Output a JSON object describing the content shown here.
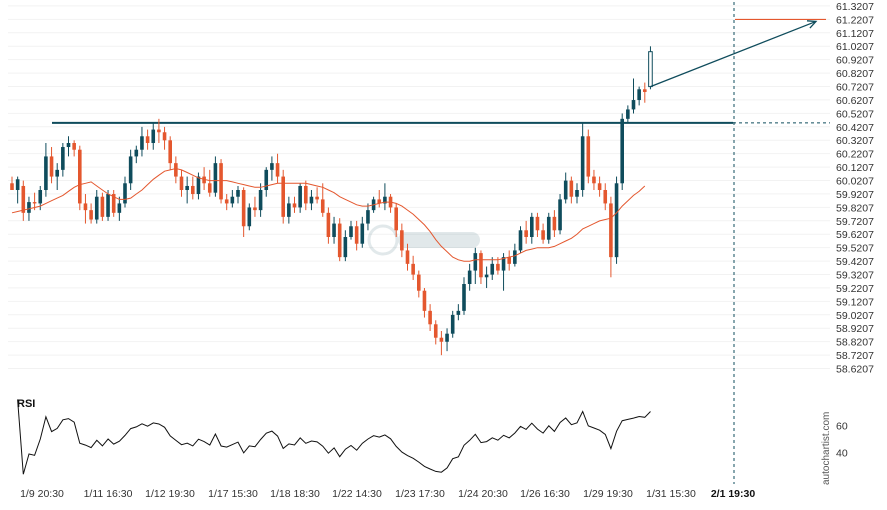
{
  "chart_data": {
    "type": "candlestick",
    "y_ticks": [
      "61.3207",
      "61.2207",
      "61.1207",
      "61.0207",
      "60.9207",
      "60.8207",
      "60.7207",
      "60.6207",
      "60.5207",
      "60.4207",
      "60.3207",
      "60.2207",
      "60.1207",
      "60.0207",
      "59.9207",
      "59.8207",
      "59.7207",
      "59.6207",
      "59.5207",
      "59.4207",
      "59.3207",
      "59.2207",
      "59.1207",
      "59.0207",
      "58.9207",
      "58.8207",
      "58.7207",
      "58.6207"
    ],
    "ylim": [
      58.55,
      61.35
    ],
    "x_ticks": [
      "1/9 20:30",
      "1/11 16:30",
      "1/12 19:30",
      "1/17 15:30",
      "1/18 18:30",
      "1/22 14:30",
      "1/23 17:30",
      "1/24 20:30",
      "1/26 16:30",
      "1/29 19:30",
      "1/31 15:30",
      "2/1 19:30"
    ],
    "highlighted_x_tick": "2/1 19:30",
    "colors": {
      "up": "#0f4c5c",
      "down": "#e4572e",
      "ma": "#e4572e",
      "resistance": "#0f4c5c",
      "target": "#e4572e",
      "rsi": "#111111",
      "projection": "#0f4c5c"
    },
    "resistance_level": 60.45,
    "target_level": 61.22,
    "rsi_label": "RSI",
    "rsi_ticks": [
      "60",
      "40"
    ],
    "rsi_ylim": [
      20,
      80
    ],
    "watermark": "autochartist.com",
    "candles": [
      {
        "o": 60.0,
        "h": 60.05,
        "l": 59.95,
        "c": 59.95
      },
      {
        "o": 59.95,
        "h": 60.05,
        "l": 59.85,
        "c": 60.03
      },
      {
        "o": 59.98,
        "h": 60.02,
        "l": 59.72,
        "c": 59.78
      },
      {
        "o": 59.78,
        "h": 59.9,
        "l": 59.72,
        "c": 59.86
      },
      {
        "o": 59.86,
        "h": 59.93,
        "l": 59.8,
        "c": 59.85
      },
      {
        "o": 59.85,
        "h": 59.98,
        "l": 59.8,
        "c": 59.95
      },
      {
        "o": 59.95,
        "h": 60.3,
        "l": 59.9,
        "c": 60.2
      },
      {
        "o": 60.2,
        "h": 60.27,
        "l": 60.0,
        "c": 60.05
      },
      {
        "o": 60.05,
        "h": 60.15,
        "l": 59.95,
        "c": 60.1
      },
      {
        "o": 60.1,
        "h": 60.3,
        "l": 60.05,
        "c": 60.27
      },
      {
        "o": 60.27,
        "h": 60.35,
        "l": 60.2,
        "c": 60.3
      },
      {
        "o": 60.3,
        "h": 60.32,
        "l": 60.2,
        "c": 60.25
      },
      {
        "o": 60.25,
        "h": 60.28,
        "l": 59.8,
        "c": 59.85
      },
      {
        "o": 59.85,
        "h": 59.92,
        "l": 59.7,
        "c": 59.8
      },
      {
        "o": 59.8,
        "h": 59.85,
        "l": 59.7,
        "c": 59.73
      },
      {
        "o": 59.73,
        "h": 59.95,
        "l": 59.7,
        "c": 59.9
      },
      {
        "o": 59.9,
        "h": 59.93,
        "l": 59.72,
        "c": 59.75
      },
      {
        "o": 59.75,
        "h": 59.95,
        "l": 59.72,
        "c": 59.92
      },
      {
        "o": 59.92,
        "h": 59.95,
        "l": 59.75,
        "c": 59.78
      },
      {
        "o": 59.78,
        "h": 59.9,
        "l": 59.72,
        "c": 59.85
      },
      {
        "o": 59.85,
        "h": 60.05,
        "l": 59.82,
        "c": 60.0
      },
      {
        "o": 60.0,
        "h": 60.25,
        "l": 59.95,
        "c": 60.2
      },
      {
        "o": 60.2,
        "h": 60.28,
        "l": 60.15,
        "c": 60.25
      },
      {
        "o": 60.25,
        "h": 60.42,
        "l": 60.2,
        "c": 60.35
      },
      {
        "o": 60.35,
        "h": 60.4,
        "l": 60.25,
        "c": 60.3
      },
      {
        "o": 60.3,
        "h": 60.45,
        "l": 60.25,
        "c": 60.4
      },
      {
        "o": 60.4,
        "h": 60.48,
        "l": 60.3,
        "c": 60.38
      },
      {
        "o": 60.38,
        "h": 60.42,
        "l": 60.25,
        "c": 60.32
      },
      {
        "o": 60.32,
        "h": 60.35,
        "l": 60.1,
        "c": 60.15
      },
      {
        "o": 60.15,
        "h": 60.2,
        "l": 60.0,
        "c": 60.05
      },
      {
        "o": 60.05,
        "h": 60.1,
        "l": 59.9,
        "c": 59.95
      },
      {
        "o": 59.95,
        "h": 60.05,
        "l": 59.85,
        "c": 59.98
      },
      {
        "o": 59.98,
        "h": 60.05,
        "l": 59.88,
        "c": 59.92
      },
      {
        "o": 59.92,
        "h": 60.08,
        "l": 59.88,
        "c": 60.05
      },
      {
        "o": 60.05,
        "h": 60.12,
        "l": 59.95,
        "c": 60.0
      },
      {
        "o": 60.0,
        "h": 60.1,
        "l": 59.9,
        "c": 59.93
      },
      {
        "o": 59.93,
        "h": 60.2,
        "l": 59.9,
        "c": 60.15
      },
      {
        "o": 60.15,
        "h": 60.18,
        "l": 59.85,
        "c": 59.88
      },
      {
        "o": 59.88,
        "h": 59.92,
        "l": 59.8,
        "c": 59.85
      },
      {
        "o": 59.85,
        "h": 59.95,
        "l": 59.82,
        "c": 59.9
      },
      {
        "o": 59.9,
        "h": 59.98,
        "l": 59.85,
        "c": 59.95
      },
      {
        "o": 59.95,
        "h": 59.97,
        "l": 59.6,
        "c": 59.68
      },
      {
        "o": 59.68,
        "h": 59.85,
        "l": 59.65,
        "c": 59.82
      },
      {
        "o": 59.82,
        "h": 59.9,
        "l": 59.75,
        "c": 59.8
      },
      {
        "o": 59.8,
        "h": 60.0,
        "l": 59.75,
        "c": 59.95
      },
      {
        "o": 59.95,
        "h": 60.12,
        "l": 59.9,
        "c": 60.1
      },
      {
        "o": 60.1,
        "h": 60.2,
        "l": 60.02,
        "c": 60.15
      },
      {
        "o": 60.15,
        "h": 60.22,
        "l": 60.0,
        "c": 60.05
      },
      {
        "o": 60.05,
        "h": 60.1,
        "l": 59.7,
        "c": 59.75
      },
      {
        "o": 59.75,
        "h": 59.9,
        "l": 59.7,
        "c": 59.85
      },
      {
        "o": 59.85,
        "h": 59.9,
        "l": 59.78,
        "c": 59.82
      },
      {
        "o": 59.82,
        "h": 60.0,
        "l": 59.78,
        "c": 59.98
      },
      {
        "o": 59.98,
        "h": 60.02,
        "l": 59.8,
        "c": 59.85
      },
      {
        "o": 59.85,
        "h": 59.95,
        "l": 59.8,
        "c": 59.9
      },
      {
        "o": 59.9,
        "h": 59.97,
        "l": 59.85,
        "c": 59.88
      },
      {
        "o": 59.88,
        "h": 60.0,
        "l": 59.75,
        "c": 59.78
      },
      {
        "o": 59.78,
        "h": 59.82,
        "l": 59.55,
        "c": 59.6
      },
      {
        "o": 59.6,
        "h": 59.75,
        "l": 59.55,
        "c": 59.7
      },
      {
        "o": 59.7,
        "h": 59.74,
        "l": 59.42,
        "c": 59.45
      },
      {
        "o": 59.45,
        "h": 59.65,
        "l": 59.42,
        "c": 59.6
      },
      {
        "o": 59.6,
        "h": 59.72,
        "l": 59.58,
        "c": 59.68
      },
      {
        "o": 59.68,
        "h": 59.72,
        "l": 59.5,
        "c": 59.55
      },
      {
        "o": 59.55,
        "h": 59.75,
        "l": 59.52,
        "c": 59.7
      },
      {
        "o": 59.7,
        "h": 59.85,
        "l": 59.65,
        "c": 59.8
      },
      {
        "o": 59.8,
        "h": 59.9,
        "l": 59.78,
        "c": 59.88
      },
      {
        "o": 59.88,
        "h": 59.95,
        "l": 59.82,
        "c": 59.85
      },
      {
        "o": 59.85,
        "h": 60.0,
        "l": 59.8,
        "c": 59.9
      },
      {
        "o": 59.9,
        "h": 59.92,
        "l": 59.78,
        "c": 59.82
      },
      {
        "o": 59.82,
        "h": 59.85,
        "l": 59.6,
        "c": 59.65
      },
      {
        "o": 59.65,
        "h": 59.7,
        "l": 59.45,
        "c": 59.5
      },
      {
        "o": 59.5,
        "h": 59.55,
        "l": 59.35,
        "c": 59.4
      },
      {
        "o": 59.4,
        "h": 59.46,
        "l": 59.28,
        "c": 59.32
      },
      {
        "o": 59.32,
        "h": 59.35,
        "l": 59.15,
        "c": 59.2
      },
      {
        "o": 59.2,
        "h": 59.22,
        "l": 59.0,
        "c": 59.05
      },
      {
        "o": 59.05,
        "h": 59.1,
        "l": 58.9,
        "c": 58.95
      },
      {
        "o": 58.95,
        "h": 58.98,
        "l": 58.8,
        "c": 58.85
      },
      {
        "o": 58.85,
        "h": 58.9,
        "l": 58.72,
        "c": 58.82
      },
      {
        "o": 58.82,
        "h": 58.92,
        "l": 58.75,
        "c": 58.88
      },
      {
        "o": 58.88,
        "h": 59.05,
        "l": 58.85,
        "c": 59.02
      },
      {
        "o": 59.02,
        "h": 59.1,
        "l": 58.98,
        "c": 59.05
      },
      {
        "o": 59.05,
        "h": 59.3,
        "l": 59.02,
        "c": 59.25
      },
      {
        "o": 59.25,
        "h": 59.4,
        "l": 59.2,
        "c": 59.35
      },
      {
        "o": 59.35,
        "h": 59.52,
        "l": 59.25,
        "c": 59.48
      },
      {
        "o": 59.48,
        "h": 59.5,
        "l": 59.25,
        "c": 59.3
      },
      {
        "o": 59.3,
        "h": 59.38,
        "l": 59.22,
        "c": 59.32
      },
      {
        "o": 59.32,
        "h": 59.45,
        "l": 59.28,
        "c": 59.4
      },
      {
        "o": 59.4,
        "h": 59.45,
        "l": 59.32,
        "c": 59.35
      },
      {
        "o": 59.35,
        "h": 59.48,
        "l": 59.2,
        "c": 59.45
      },
      {
        "o": 59.45,
        "h": 59.5,
        "l": 59.35,
        "c": 59.4
      },
      {
        "o": 59.4,
        "h": 59.55,
        "l": 59.38,
        "c": 59.5
      },
      {
        "o": 59.5,
        "h": 59.68,
        "l": 59.48,
        "c": 59.65
      },
      {
        "o": 59.65,
        "h": 59.72,
        "l": 59.55,
        "c": 59.6
      },
      {
        "o": 59.6,
        "h": 59.78,
        "l": 59.55,
        "c": 59.75
      },
      {
        "o": 59.75,
        "h": 59.78,
        "l": 59.6,
        "c": 59.65
      },
      {
        "o": 59.65,
        "h": 59.7,
        "l": 59.55,
        "c": 59.58
      },
      {
        "o": 59.58,
        "h": 59.78,
        "l": 59.55,
        "c": 59.75
      },
      {
        "o": 59.75,
        "h": 59.8,
        "l": 59.6,
        "c": 59.65
      },
      {
        "o": 59.65,
        "h": 59.92,
        "l": 59.62,
        "c": 59.88
      },
      {
        "o": 59.88,
        "h": 60.08,
        "l": 59.85,
        "c": 60.02
      },
      {
        "o": 60.02,
        "h": 60.05,
        "l": 59.85,
        "c": 59.9
      },
      {
        "o": 59.9,
        "h": 60.0,
        "l": 59.85,
        "c": 59.95
      },
      {
        "o": 59.95,
        "h": 60.45,
        "l": 59.9,
        "c": 60.35
      },
      {
        "o": 60.35,
        "h": 60.4,
        "l": 60.0,
        "c": 60.05
      },
      {
        "o": 60.05,
        "h": 60.1,
        "l": 59.95,
        "c": 60.0
      },
      {
        "o": 60.0,
        "h": 60.05,
        "l": 59.9,
        "c": 59.95
      },
      {
        "o": 59.95,
        "h": 60.0,
        "l": 59.8,
        "c": 59.85
      },
      {
        "o": 59.85,
        "h": 59.9,
        "l": 59.3,
        "c": 59.45
      },
      {
        "o": 59.45,
        "h": 60.05,
        "l": 59.4,
        "c": 60.0
      },
      {
        "o": 60.0,
        "h": 60.52,
        "l": 59.95,
        "c": 60.48
      },
      {
        "o": 60.48,
        "h": 60.58,
        "l": 60.45,
        "c": 60.55
      },
      {
        "o": 60.55,
        "h": 60.78,
        "l": 60.52,
        "c": 60.62
      },
      {
        "o": 60.62,
        "h": 60.72,
        "l": 60.58,
        "c": 60.7
      },
      {
        "o": 60.7,
        "h": 60.75,
        "l": 60.6,
        "c": 60.68
      },
      {
        "o": 60.72,
        "h": 61.02,
        "l": 60.7,
        "c": 60.98
      }
    ],
    "ma": [
      59.78,
      59.79,
      59.8,
      59.81,
      59.82,
      59.83,
      59.85,
      59.87,
      59.89,
      59.91,
      59.94,
      59.97,
      59.99,
      60.0,
      60.01,
      59.98,
      59.95,
      59.92,
      59.9,
      59.88,
      59.88,
      59.89,
      59.92,
      59.95,
      59.99,
      60.03,
      60.06,
      60.09,
      60.1,
      60.11,
      60.1,
      60.08,
      60.06,
      60.04,
      60.03,
      60.02,
      60.02,
      60.02,
      60.02,
      60.01,
      60.0,
      59.99,
      59.98,
      59.97,
      59.97,
      59.98,
      59.99,
      60.0,
      60.0,
      60.0,
      60.0,
      60.0,
      60.0,
      59.99,
      59.98,
      59.97,
      59.95,
      59.93,
      59.9,
      59.88,
      59.86,
      59.84,
      59.83,
      59.83,
      59.84,
      59.85,
      59.86,
      59.86,
      59.85,
      59.83,
      59.8,
      59.77,
      59.73,
      59.69,
      59.64,
      59.58,
      59.53,
      59.49,
      59.45,
      59.43,
      59.42,
      59.42,
      59.43,
      59.43,
      59.43,
      59.43,
      59.43,
      59.44,
      59.45,
      59.46,
      59.48,
      59.5,
      59.51,
      59.52,
      59.52,
      59.52,
      59.53,
      59.55,
      59.57,
      59.59,
      59.62,
      59.66,
      59.68,
      59.7,
      59.72,
      59.73,
      59.74,
      59.78,
      59.83,
      59.87,
      59.91,
      59.94,
      59.98
    ]
  }
}
